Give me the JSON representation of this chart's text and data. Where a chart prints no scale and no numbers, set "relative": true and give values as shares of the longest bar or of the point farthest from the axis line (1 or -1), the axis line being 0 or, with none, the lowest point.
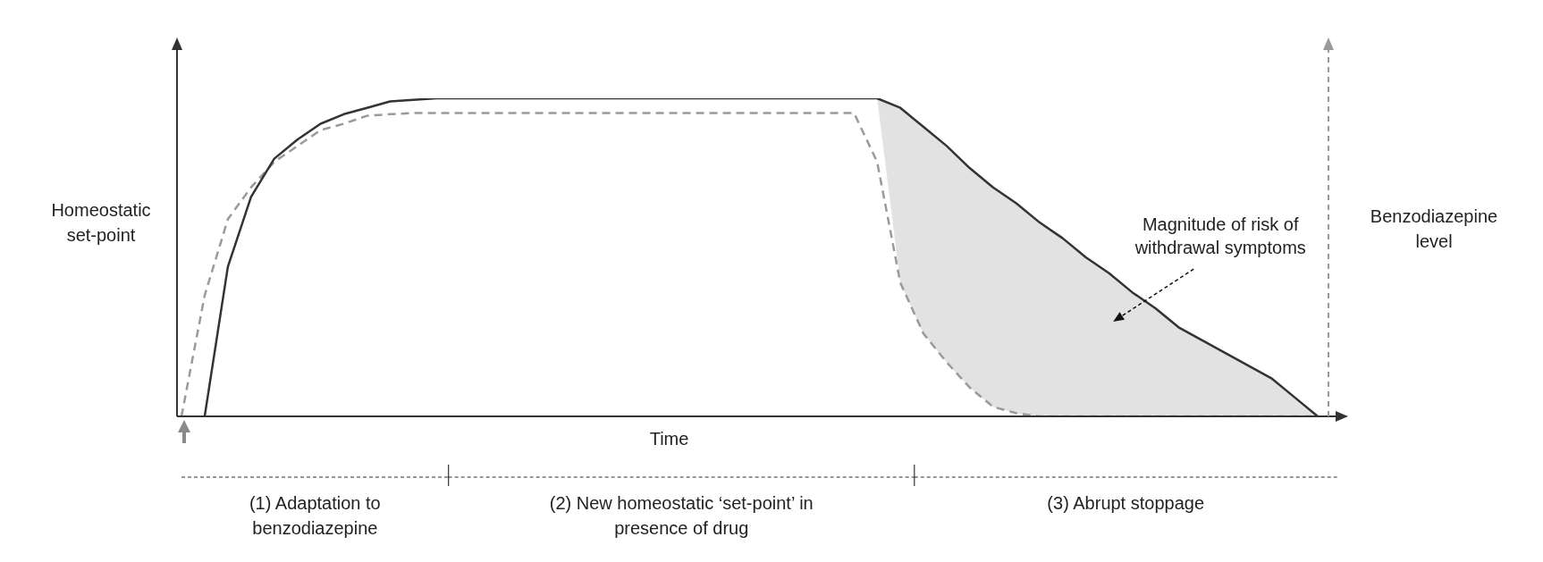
{
  "chart_data": {
    "type": "line",
    "relative": true,
    "xlabel": "Time",
    "ylabel": "Homeostatic set-point",
    "y2label": "Benzodiazepine level",
    "marker": "none",
    "categories": [
      null,
      null,
      null,
      null,
      null,
      null,
      null,
      null,
      null,
      null,
      null,
      null,
      null,
      null,
      null,
      null,
      null,
      null,
      null,
      null,
      null,
      null,
      null,
      null,
      null,
      null,
      null,
      null,
      null,
      null,
      null,
      null,
      null,
      null,
      null,
      null,
      null,
      null,
      null,
      null,
      null,
      null,
      null,
      null,
      null,
      null,
      null,
      null,
      null,
      null
    ],
    "series": [
      {
        "color": "#333333",
        "line_style": "solid",
        "values": [
          null,
          0,
          0.47,
          0.69,
          0.81,
          0.87,
          0.92,
          0.95,
          0.97,
          0.99,
          0.995,
          1,
          1,
          1,
          1,
          1,
          1,
          1,
          1,
          1,
          1,
          1,
          1,
          1,
          1,
          1,
          1,
          1,
          1,
          1,
          1,
          0.97,
          0.91,
          0.85,
          0.78,
          0.72,
          0.67,
          0.61,
          0.56,
          0.5,
          0.45,
          0.39,
          0.34,
          0.28,
          0.24,
          0.2,
          0.16,
          0.12,
          0.06,
          0
        ],
        "lower": [
          null,
          null,
          null,
          null,
          null,
          null,
          null,
          null,
          null,
          null,
          null,
          null,
          null,
          null,
          null,
          null,
          null,
          null,
          null,
          null,
          null,
          null,
          null,
          null,
          null,
          null,
          null,
          null,
          null,
          null,
          1,
          0.42,
          0.26,
          0.17,
          0.09,
          0.03,
          0.01,
          0,
          0,
          0,
          0,
          0,
          0,
          0,
          0,
          0,
          0,
          0,
          0,
          0
        ],
        "upper": [
          null,
          null,
          null,
          null,
          null,
          null,
          null,
          null,
          null,
          null,
          null,
          null,
          null,
          null,
          null,
          null,
          null,
          null,
          null,
          null,
          null,
          null,
          null,
          null,
          null,
          null,
          null,
          null,
          null,
          null,
          1,
          0.97,
          0.91,
          0.85,
          0.78,
          0.72,
          0.67,
          0.61,
          0.56,
          0.5,
          0.45,
          0.39,
          0.34,
          0.28,
          0.24,
          0.2,
          0.16,
          0.12,
          0.06,
          0
        ]
      },
      {
        "color": "#9a9a9a",
        "line_style": "dashed",
        "values": [
          0,
          0.38,
          0.62,
          0.72,
          0.8,
          0.85,
          0.9,
          0.92,
          0.945,
          0.95,
          0.954,
          0.954,
          0.954,
          0.954,
          0.954,
          0.954,
          0.954,
          0.954,
          0.954,
          0.954,
          0.954,
          0.954,
          0.954,
          0.954,
          0.954,
          0.954,
          0.954,
          0.954,
          0.954,
          0.954,
          0.8,
          0.42,
          0.26,
          0.17,
          0.09,
          0.03,
          0.01,
          0,
          0,
          0,
          0,
          0,
          0,
          0,
          0,
          0,
          0,
          0,
          0,
          0
        ]
      }
    ],
    "annotations": [
      "Magnitude of risk of withdrawal symptoms",
      "(1) Adaptation to benzodiazepine",
      "(2) New homeostatic ‘set-point’ in presence of drug",
      "(3) Abrupt stoppage"
    ]
  }
}
